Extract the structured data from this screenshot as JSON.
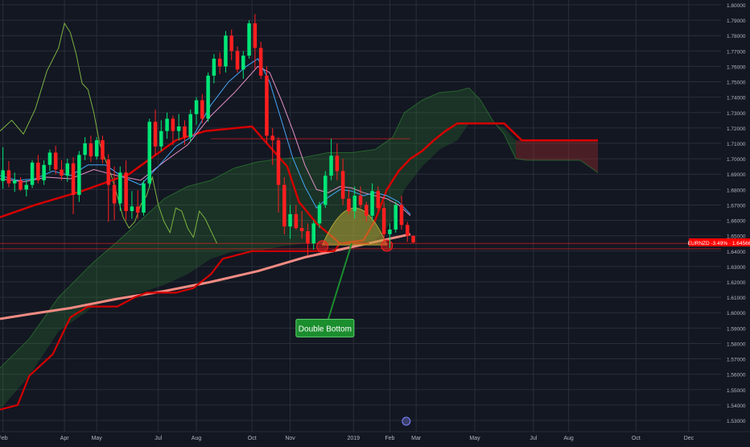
{
  "colors": {
    "background": "#131722",
    "grid": "#2a2e39",
    "axis_text": "#b2b5be",
    "bull": "#00e676",
    "bear": "#ff1f1f",
    "cloud_green": "#2e7d32",
    "cloud_red": "#8c2a2a",
    "kijun": "#d50000",
    "sma200": "#f28b82",
    "ema_blue": "#42a5f5",
    "ema_pink": "#e291c9",
    "chikou": "#7cb342",
    "annotation_green": "#1b8e2e",
    "price_tag": "#ff0000",
    "bump_fill": "#b8a636"
  },
  "chart_data": {
    "type": "candlestick",
    "symbol": "EURNZD",
    "price_label": {
      "text": "EURNZD -3.49% · 1.64566",
      "value": 1.64566
    },
    "y_axis": {
      "ylim": [
        1.525,
        1.805
      ],
      "ticks": [
        "1.80000",
        "1.79000",
        "1.78000",
        "1.77000",
        "1.76000",
        "1.75000",
        "1.74000",
        "1.73000",
        "1.72000",
        "1.71000",
        "1.70000",
        "1.69000",
        "1.68000",
        "1.67000",
        "1.66000",
        "1.65000",
        "1.64000",
        "1.63000",
        "1.62000",
        "1.61000",
        "1.60000",
        "1.59000",
        "1.58000",
        "1.57000",
        "1.56000",
        "1.55000",
        "1.54000",
        "1.53000"
      ]
    },
    "x_axis": {
      "labels": [
        "Feb",
        "Apr",
        "May",
        "Jul",
        "Aug",
        "Oct",
        "Nov",
        "2019",
        "Feb",
        "Mar",
        "May",
        "Jul",
        "Aug",
        "Oct",
        "Dec"
      ],
      "label_weeks": [
        0.5,
        11,
        16.5,
        27,
        33.5,
        43,
        49.5,
        60.3,
        66.5,
        71,
        81,
        91,
        97,
        108.5,
        117.5
      ]
    },
    "week_range": [
      0,
      123
    ],
    "candles": [
      [
        1.6855,
        1.7075,
        1.6805,
        1.6925
      ],
      [
        1.6925,
        1.6985,
        1.6815,
        1.684
      ],
      [
        1.684,
        1.691,
        1.6785,
        1.686
      ],
      [
        1.686,
        1.688,
        1.679,
        1.68
      ],
      [
        1.68,
        1.686,
        1.6755,
        1.683
      ],
      [
        1.683,
        1.699,
        1.681,
        1.6975
      ],
      [
        1.6975,
        1.7025,
        1.684,
        1.686
      ],
      [
        1.686,
        1.699,
        1.683,
        1.696
      ],
      [
        1.696,
        1.706,
        1.692,
        1.704
      ],
      [
        1.704,
        1.7085,
        1.69,
        1.693
      ],
      [
        1.693,
        1.699,
        1.686,
        1.689
      ],
      [
        1.689,
        1.7,
        1.685,
        1.697
      ],
      [
        1.697,
        1.701,
        1.664,
        1.6765
      ],
      [
        1.6765,
        1.705,
        1.672,
        1.7025
      ],
      [
        1.7025,
        1.714,
        1.699,
        1.71
      ],
      [
        1.71,
        1.715,
        1.698,
        1.7015
      ],
      [
        1.7015,
        1.714,
        1.6995,
        1.712
      ],
      [
        1.712,
        1.715,
        1.697,
        1.6995
      ],
      [
        1.6995,
        1.703,
        1.659,
        1.683
      ],
      [
        1.683,
        1.695,
        1.66,
        1.671
      ],
      [
        1.671,
        1.695,
        1.666,
        1.691
      ],
      [
        1.691,
        1.699,
        1.66,
        1.666
      ],
      [
        1.666,
        1.679,
        1.661,
        1.669
      ],
      [
        1.669,
        1.6795,
        1.661,
        1.665
      ],
      [
        1.665,
        1.686,
        1.663,
        1.684
      ],
      [
        1.684,
        1.726,
        1.681,
        1.724
      ],
      [
        1.724,
        1.732,
        1.702,
        1.708
      ],
      [
        1.708,
        1.725,
        1.705,
        1.718
      ],
      [
        1.718,
        1.73,
        1.713,
        1.726
      ],
      [
        1.726,
        1.728,
        1.709,
        1.718
      ],
      [
        1.718,
        1.729,
        1.712,
        1.721
      ],
      [
        1.721,
        1.725,
        1.709,
        1.714
      ],
      [
        1.714,
        1.732,
        1.711,
        1.729
      ],
      [
        1.729,
        1.74,
        1.722,
        1.738
      ],
      [
        1.738,
        1.742,
        1.723,
        1.726
      ],
      [
        1.726,
        1.756,
        1.724,
        1.754
      ],
      [
        1.754,
        1.768,
        1.749,
        1.765
      ],
      [
        1.765,
        1.769,
        1.755,
        1.76
      ],
      [
        1.76,
        1.783,
        1.756,
        1.78
      ],
      [
        1.78,
        1.784,
        1.764,
        1.77
      ],
      [
        1.77,
        1.773,
        1.756,
        1.758
      ],
      [
        1.758,
        1.77,
        1.752,
        1.767
      ],
      [
        1.767,
        1.79,
        1.765,
        1.788
      ],
      [
        1.788,
        1.794,
        1.758,
        1.772
      ],
      [
        1.772,
        1.776,
        1.752,
        1.754
      ],
      [
        1.754,
        1.76,
        1.71,
        1.715
      ],
      [
        1.715,
        1.72,
        1.696,
        1.712
      ],
      [
        1.712,
        1.714,
        1.665,
        1.683
      ],
      [
        1.683,
        1.688,
        1.651,
        1.656
      ],
      [
        1.656,
        1.67,
        1.648,
        1.664
      ],
      [
        1.664,
        1.67,
        1.654,
        1.655
      ],
      [
        1.655,
        1.666,
        1.648,
        1.653
      ],
      [
        1.653,
        1.658,
        1.637,
        1.645
      ],
      [
        1.645,
        1.66,
        1.641,
        1.658
      ],
      [
        1.658,
        1.672,
        1.655,
        1.67
      ],
      [
        1.67,
        1.692,
        1.668,
        1.689
      ],
      [
        1.689,
        1.713,
        1.686,
        1.702
      ],
      [
        1.702,
        1.71,
        1.686,
        1.692
      ],
      [
        1.692,
        1.7,
        1.67,
        1.674
      ],
      [
        1.674,
        1.68,
        1.664,
        1.666
      ],
      [
        1.666,
        1.682,
        1.661,
        1.676
      ],
      [
        1.676,
        1.682,
        1.668,
        1.67
      ],
      [
        1.67,
        1.672,
        1.659,
        1.663
      ],
      [
        1.663,
        1.684,
        1.66,
        1.679
      ],
      [
        1.679,
        1.682,
        1.666,
        1.668
      ],
      [
        1.668,
        1.672,
        1.647,
        1.651
      ],
      [
        1.651,
        1.658,
        1.642,
        1.654
      ],
      [
        1.654,
        1.672,
        1.652,
        1.67
      ],
      [
        1.67,
        1.676,
        1.654,
        1.657
      ],
      [
        1.657,
        1.659,
        1.646,
        1.65
      ],
      [
        1.65,
        1.65,
        1.645,
        1.6457
      ]
    ],
    "kijun": [
      [
        0,
        1.662
      ],
      [
        6,
        1.67
      ],
      [
        14,
        1.679
      ],
      [
        22,
        1.69
      ],
      [
        30,
        1.712
      ],
      [
        35,
        1.718
      ],
      [
        43,
        1.721
      ],
      [
        49,
        1.695
      ],
      [
        51,
        1.672
      ],
      [
        54,
        1.658
      ],
      [
        58,
        1.645
      ],
      [
        62,
        1.647
      ],
      [
        64,
        1.66
      ],
      [
        66,
        1.68
      ],
      [
        68,
        1.692
      ],
      [
        70,
        1.7
      ],
      [
        72,
        1.705
      ],
      [
        74,
        1.712
      ],
      [
        76,
        1.718
      ],
      [
        78,
        1.723
      ],
      [
        80,
        1.723
      ],
      [
        86,
        1.723
      ],
      [
        89,
        1.712
      ],
      [
        102,
        1.712
      ]
    ],
    "tenkan_base": [
      [
        0,
        1.537
      ],
      [
        3,
        1.54
      ],
      [
        5,
        1.559
      ],
      [
        9,
        1.573
      ],
      [
        12,
        1.597
      ],
      [
        15,
        1.604
      ],
      [
        20,
        1.604
      ],
      [
        23,
        1.61
      ],
      [
        25,
        1.613
      ],
      [
        30,
        1.613
      ],
      [
        33,
        1.616
      ],
      [
        36,
        1.625
      ],
      [
        38,
        1.635
      ],
      [
        43,
        1.64
      ],
      [
        53,
        1.64
      ],
      [
        57,
        1.64
      ],
      [
        58,
        1.645
      ],
      [
        62,
        1.645
      ],
      [
        63,
        1.645
      ]
    ],
    "sma200": [
      [
        0,
        1.596
      ],
      [
        5,
        1.599
      ],
      [
        12,
        1.603
      ],
      [
        20,
        1.609
      ],
      [
        28,
        1.614
      ],
      [
        36,
        1.62
      ],
      [
        44,
        1.627
      ],
      [
        52,
        1.636
      ],
      [
        58,
        1.641
      ],
      [
        64,
        1.646
      ],
      [
        70,
        1.651
      ]
    ],
    "ema_blue": [
      [
        0,
        1.689
      ],
      [
        3,
        1.686
      ],
      [
        6,
        1.687
      ],
      [
        9,
        1.692
      ],
      [
        12,
        1.689
      ],
      [
        15,
        1.696
      ],
      [
        18,
        1.696
      ],
      [
        21,
        1.688
      ],
      [
        24,
        1.683
      ],
      [
        27,
        1.695
      ],
      [
        30,
        1.708
      ],
      [
        33,
        1.715
      ],
      [
        36,
        1.735
      ],
      [
        39,
        1.75
      ],
      [
        42,
        1.76
      ],
      [
        44,
        1.765
      ],
      [
        46,
        1.75
      ],
      [
        48,
        1.725
      ],
      [
        50,
        1.7
      ],
      [
        52,
        1.682
      ],
      [
        54,
        1.668
      ],
      [
        56,
        1.675
      ],
      [
        58,
        1.68
      ],
      [
        60,
        1.679
      ],
      [
        62,
        1.676
      ],
      [
        64,
        1.678
      ],
      [
        66,
        1.676
      ],
      [
        68,
        1.672
      ],
      [
        70,
        1.664
      ]
    ],
    "ema_pink": [
      [
        0,
        1.687
      ],
      [
        4,
        1.685
      ],
      [
        8,
        1.688
      ],
      [
        12,
        1.687
      ],
      [
        16,
        1.693
      ],
      [
        20,
        1.689
      ],
      [
        24,
        1.686
      ],
      [
        28,
        1.698
      ],
      [
        32,
        1.709
      ],
      [
        36,
        1.728
      ],
      [
        40,
        1.743
      ],
      [
        44,
        1.76
      ],
      [
        46,
        1.756
      ],
      [
        48,
        1.738
      ],
      [
        50,
        1.718
      ],
      [
        52,
        1.696
      ],
      [
        54,
        1.68
      ],
      [
        56,
        1.678
      ],
      [
        58,
        1.682
      ],
      [
        60,
        1.681
      ],
      [
        62,
        1.678
      ],
      [
        64,
        1.676
      ],
      [
        66,
        1.674
      ],
      [
        68,
        1.67
      ],
      [
        70,
        1.663
      ]
    ],
    "cloud_upper": [
      [
        0,
        1.564
      ],
      [
        5,
        1.583
      ],
      [
        10,
        1.61
      ],
      [
        16,
        1.633
      ],
      [
        20,
        1.646
      ],
      [
        24,
        1.66
      ],
      [
        28,
        1.674
      ],
      [
        32,
        1.682
      ],
      [
        36,
        1.686
      ],
      [
        40,
        1.694
      ],
      [
        44,
        1.698
      ],
      [
        48,
        1.7
      ],
      [
        52,
        1.701
      ],
      [
        56,
        1.704
      ],
      [
        60,
        1.704
      ],
      [
        64,
        1.706
      ],
      [
        67,
        1.714
      ],
      [
        69,
        1.73
      ],
      [
        72,
        1.738
      ],
      [
        75,
        1.743
      ],
      [
        78,
        1.744
      ],
      [
        80,
        1.746
      ],
      [
        82,
        1.738
      ],
      [
        84,
        1.725
      ],
      [
        86,
        1.716
      ],
      [
        88,
        1.7
      ],
      [
        90,
        1.699
      ],
      [
        94,
        1.699
      ],
      [
        99,
        1.699
      ],
      [
        102,
        1.691
      ]
    ],
    "cloud_lower": [
      [
        0,
        1.537
      ],
      [
        5,
        1.559
      ],
      [
        10,
        1.588
      ],
      [
        16,
        1.604
      ],
      [
        20,
        1.61
      ],
      [
        24,
        1.613
      ],
      [
        28,
        1.618
      ],
      [
        32,
        1.625
      ],
      [
        36,
        1.635
      ],
      [
        40,
        1.64
      ],
      [
        44,
        1.64
      ],
      [
        48,
        1.643
      ],
      [
        52,
        1.645
      ],
      [
        56,
        1.645
      ],
      [
        60,
        1.645
      ],
      [
        64,
        1.647
      ],
      [
        67,
        1.66
      ],
      [
        69,
        1.68
      ],
      [
        72,
        1.695
      ],
      [
        75,
        1.706
      ],
      [
        78,
        1.712
      ],
      [
        80,
        1.723
      ],
      [
        82,
        1.723
      ],
      [
        84,
        1.723
      ],
      [
        86,
        1.72
      ],
      [
        88,
        1.712
      ],
      [
        90,
        1.712
      ],
      [
        94,
        1.712
      ],
      [
        99,
        1.712
      ],
      [
        102,
        1.712
      ]
    ],
    "red_cloud_range": [
      88,
      102
    ],
    "chikou": [
      [
        0,
        1.718
      ],
      [
        2,
        1.725
      ],
      [
        4,
        1.716
      ],
      [
        6,
        1.732
      ],
      [
        8,
        1.757
      ],
      [
        10,
        1.772
      ],
      [
        11,
        1.788
      ],
      [
        12,
        1.782
      ],
      [
        13,
        1.768
      ],
      [
        14,
        1.749
      ],
      [
        15,
        1.745
      ],
      [
        16,
        1.73
      ],
      [
        17,
        1.71
      ],
      [
        18,
        1.699
      ],
      [
        19,
        1.689
      ],
      [
        20,
        1.676
      ],
      [
        21,
        1.662
      ],
      [
        22,
        1.655
      ],
      [
        23,
        1.659
      ],
      [
        24,
        1.67
      ],
      [
        25,
        1.676
      ],
      [
        26,
        1.688
      ],
      [
        27,
        1.67
      ],
      [
        28,
        1.659
      ],
      [
        29,
        1.652
      ],
      [
        30,
        1.668
      ],
      [
        31,
        1.666
      ],
      [
        32,
        1.655
      ],
      [
        33,
        1.649
      ],
      [
        34,
        1.666
      ],
      [
        35,
        1.661
      ],
      [
        36,
        1.653
      ],
      [
        37,
        1.645
      ]
    ],
    "horizontal_levels": [
      {
        "y": 1.713,
        "from_week": 36,
        "to_week": 70
      },
      {
        "y": 1.645,
        "from_week": 0,
        "to_week": 123
      },
      {
        "y": 1.6415,
        "from_week": 0,
        "to_week": 123
      }
    ],
    "double_bottom": {
      "label": "Double Bottom",
      "bump_from_week": 55,
      "bump_to_week": 66,
      "bump_base": 1.644,
      "bump_peak": 1.668,
      "lows": [
        [
          55,
          1.6415
        ],
        [
          66,
          1.642
        ]
      ],
      "label_week": 50.5,
      "label_value": 1.5905
    }
  }
}
